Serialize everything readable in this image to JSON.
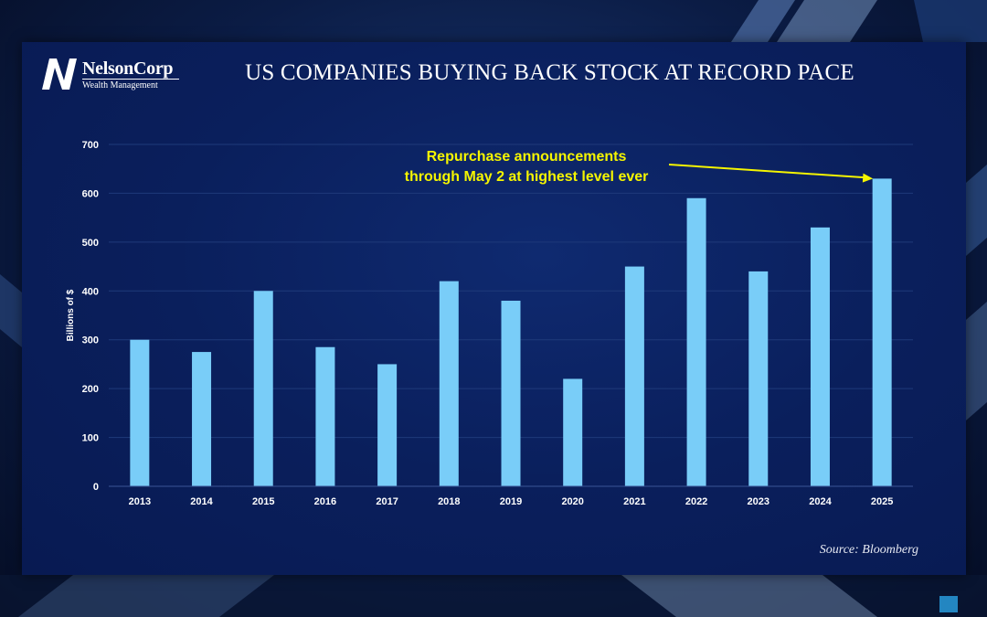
{
  "logo": {
    "name": "NelsonCorp",
    "subtitle": "Wealth Management"
  },
  "title": "US COMPANIES BUYING BACK STOCK AT RECORD PACE",
  "source": "Source: Bloomberg",
  "colors": {
    "bar": "#79cdf8",
    "annotation": "#f5f500",
    "panel": "#0a1f5c",
    "grid": "#1f3a7a"
  },
  "chart_data": {
    "type": "bar",
    "title": "US COMPANIES BUYING BACK STOCK AT RECORD PACE",
    "xlabel": "",
    "ylabel": "Billions of $",
    "categories": [
      "2013",
      "2014",
      "2015",
      "2016",
      "2017",
      "2018",
      "2019",
      "2020",
      "2021",
      "2022",
      "2023",
      "2024",
      "2025"
    ],
    "values": [
      300,
      275,
      400,
      285,
      250,
      420,
      380,
      220,
      450,
      590,
      440,
      530,
      630
    ],
    "ylim": [
      0,
      700
    ],
    "yticks": [
      0,
      100,
      200,
      300,
      400,
      500,
      600,
      700
    ],
    "grid": true,
    "annotation": {
      "lines": [
        "Repurchase announcements",
        "through May 2 at highest level ever"
      ],
      "target_category": "2025"
    }
  }
}
